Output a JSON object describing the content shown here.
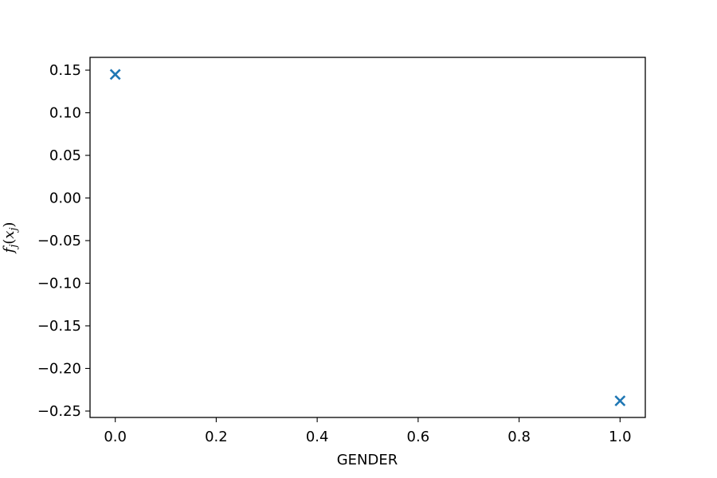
{
  "chart_data": {
    "type": "scatter",
    "title": "",
    "xlabel": "GENDER",
    "ylabel": "f_j(x_j)",
    "ylabel_parts": {
      "f": "f",
      "sub1": "j",
      "open": "(",
      "x": "x",
      "sub2": "j",
      "close": ")"
    },
    "xlim": [
      -0.05,
      1.05
    ],
    "ylim": [
      -0.2575,
      0.165
    ],
    "xticks": [
      0.0,
      0.2,
      0.4,
      0.6,
      0.8,
      1.0
    ],
    "xtick_labels": [
      "0.0",
      "0.2",
      "0.4",
      "0.6",
      "0.8",
      "1.0"
    ],
    "yticks": [
      0.15,
      0.1,
      0.05,
      0.0,
      -0.05,
      -0.1,
      -0.15,
      -0.2,
      -0.25
    ],
    "ytick_labels": [
      "0.15",
      "0.10",
      "0.05",
      "0.00",
      "−0.05",
      "−0.10",
      "−0.15",
      "−0.20",
      "−0.25"
    ],
    "grid": false,
    "marker": "x",
    "color": "#1f77b4",
    "points": [
      {
        "x": 0.0,
        "y": 0.145
      },
      {
        "x": 1.0,
        "y": -0.238
      }
    ]
  }
}
